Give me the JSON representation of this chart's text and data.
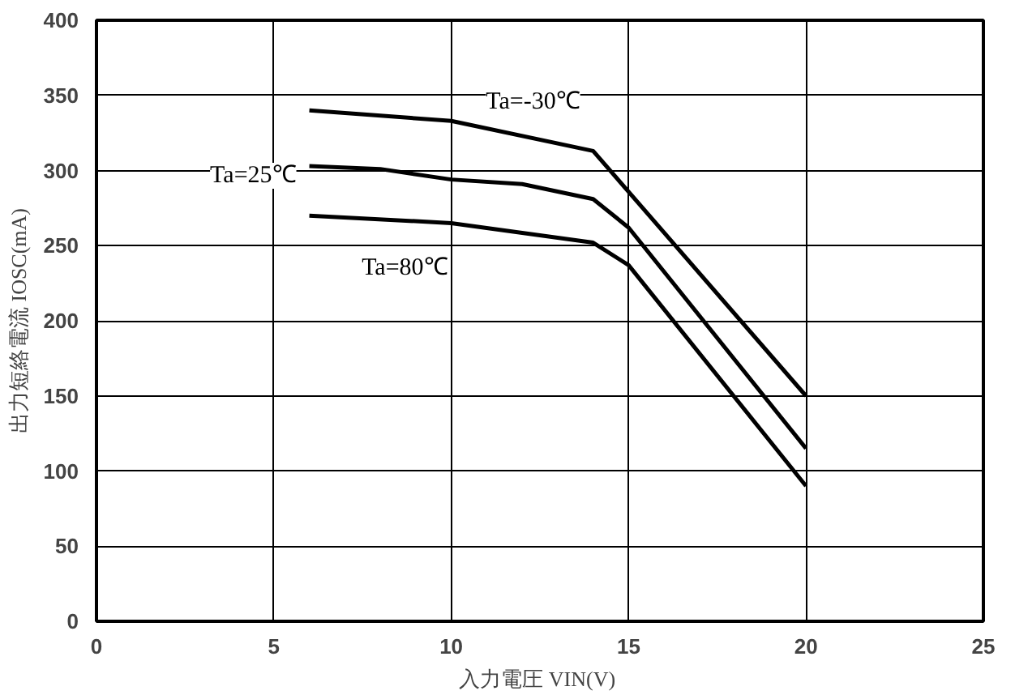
{
  "chart_data": {
    "type": "line",
    "xlabel": "入力電圧  VIN(V)",
    "ylabel": "出力短絡電流 IOSC(mA)",
    "xlim": [
      0,
      25
    ],
    "xticks": [
      0,
      5,
      10,
      15,
      20,
      25
    ],
    "ylim": [
      0,
      400
    ],
    "yticks": [
      0,
      50,
      100,
      150,
      200,
      250,
      300,
      350,
      400
    ],
    "grid": true,
    "marker": "none",
    "line_style": "solid",
    "series": [
      {
        "name": "Ta=-30℃",
        "color": "#000000",
        "x": [
          6,
          10,
          14,
          20
        ],
        "values": [
          340,
          333,
          313,
          150
        ]
      },
      {
        "name": "Ta=25℃",
        "color": "#000000",
        "x": [
          6,
          8,
          10,
          12,
          14,
          15,
          20
        ],
        "values": [
          303,
          301,
          294,
          291,
          281,
          262,
          115
        ]
      },
      {
        "name": "Ta=80℃",
        "color": "#000000",
        "x": [
          6,
          10,
          14,
          15,
          20
        ],
        "values": [
          270,
          265,
          252,
          237,
          90
        ]
      }
    ]
  }
}
